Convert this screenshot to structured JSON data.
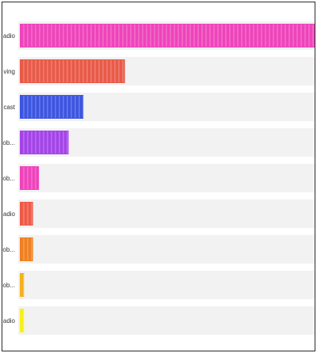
{
  "chart_data": {
    "type": "bar",
    "orientation": "horizontal",
    "categories": [
      "adio",
      "ving",
      "cast",
      "ob...",
      "ob...",
      "adio",
      "ob...",
      "ob...",
      "adio"
    ],
    "values": [
      100,
      36,
      22,
      17,
      7,
      5,
      5,
      2,
      2
    ],
    "colors": [
      "#ee44bb",
      "#e85a48",
      "#3c55e0",
      "#a444e8",
      "#ee44bb",
      "#ee5a48",
      "#f08020",
      "#f4b01e",
      "#f4f020"
    ],
    "xlim": [
      0,
      100
    ],
    "grid": false,
    "title": "",
    "xlabel": "",
    "ylabel": ""
  }
}
